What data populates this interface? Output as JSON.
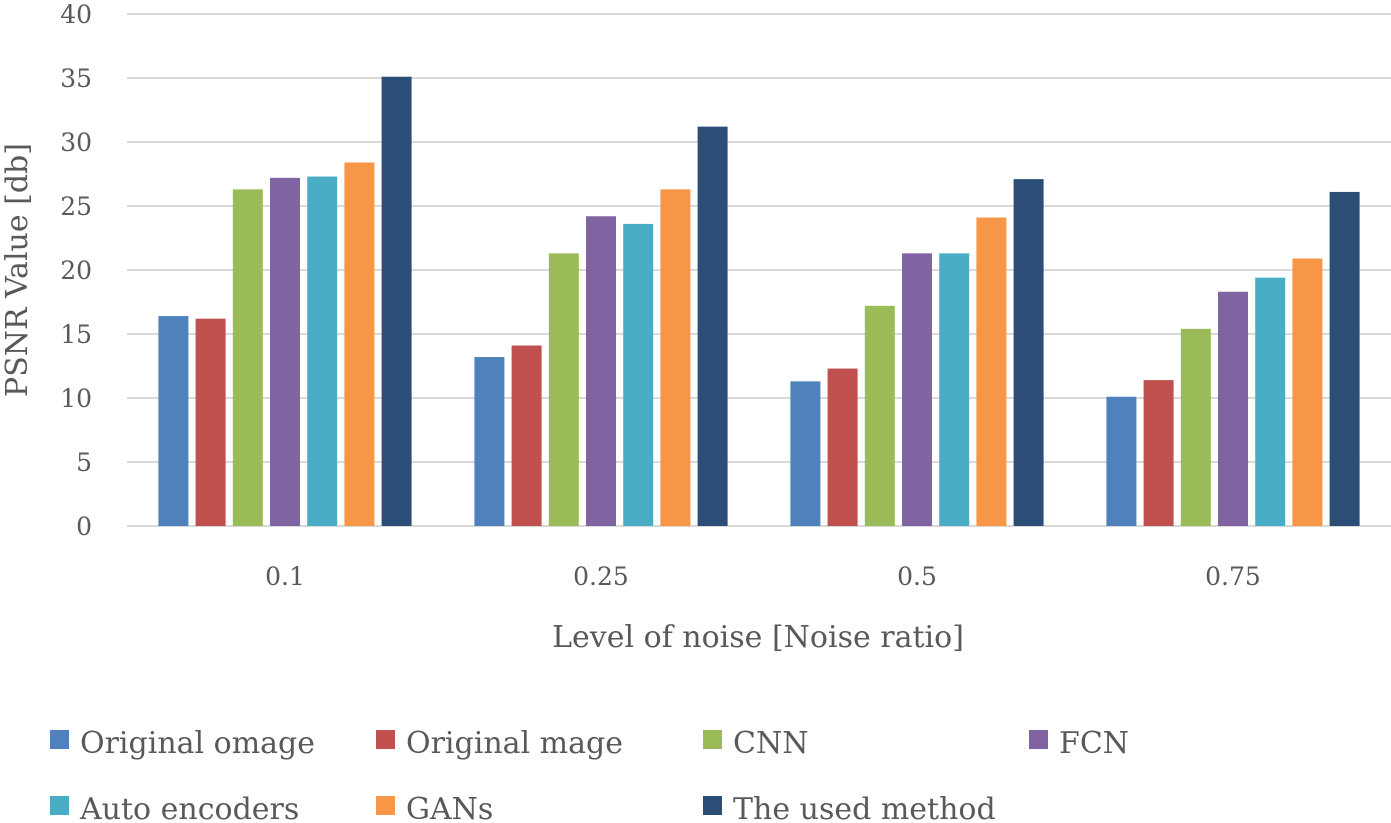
{
  "chart_data": {
    "type": "bar",
    "title": "",
    "xlabel": "Level of noise [Noise ratio]",
    "ylabel": "PSNR Value [db]",
    "ylim": [
      0,
      40
    ],
    "ytick_step": 5,
    "grid": true,
    "legend_position": "bottom",
    "categories": [
      "0.1",
      "0.25",
      "0.5",
      "0.75"
    ],
    "series": [
      {
        "name": "Original omage",
        "color": "#4f81bd",
        "values": [
          16.4,
          13.2,
          11.3,
          10.1
        ]
      },
      {
        "name": "Original mage",
        "color": "#c0504d",
        "values": [
          16.2,
          14.1,
          12.3,
          11.4
        ]
      },
      {
        "name": "CNN",
        "color": "#9bbb59",
        "values": [
          26.3,
          21.3,
          17.2,
          15.4
        ]
      },
      {
        "name": "FCN",
        "color": "#8064a2",
        "values": [
          27.2,
          24.2,
          21.3,
          18.3
        ]
      },
      {
        "name": "Auto encoders",
        "color": "#4bacc6",
        "values": [
          27.3,
          23.6,
          21.3,
          19.4
        ]
      },
      {
        "name": "GANs",
        "color": "#f79646",
        "values": [
          28.4,
          26.3,
          24.1,
          20.9
        ]
      },
      {
        "name": "The used method",
        "color": "#2c4d75",
        "values": [
          35.1,
          31.2,
          27.1,
          26.1
        ]
      }
    ]
  }
}
